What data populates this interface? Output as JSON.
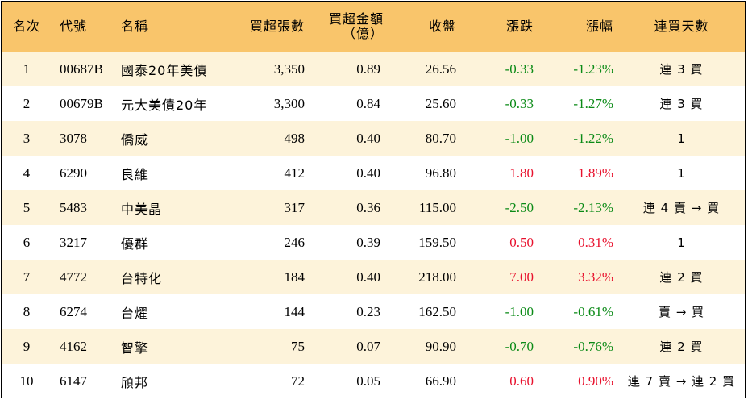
{
  "header": {
    "rank": "名次",
    "code": "代號",
    "name": "名稱",
    "volume": "買超張數",
    "amount_line1": "買超金額",
    "amount_line2": "（億）",
    "close": "收盤",
    "change": "漲跌",
    "pct": "漲幅",
    "streak": "連買天數"
  },
  "colors": {
    "header_bg": "#f9c56b",
    "stripe_bg": "#fdf3da",
    "up": "#e8112d",
    "down": "#0a8a16"
  },
  "rows": [
    {
      "rank": "1",
      "code": "00687B",
      "name": "國泰20年美債",
      "volume": "3,350",
      "amount": "0.89",
      "close": "26.56",
      "change": "-0.33",
      "pct": "-1.23%",
      "dir": "down",
      "streak": "連 3 買"
    },
    {
      "rank": "2",
      "code": "00679B",
      "name": "元大美債20年",
      "volume": "3,300",
      "amount": "0.84",
      "close": "25.60",
      "change": "-0.33",
      "pct": "-1.27%",
      "dir": "down",
      "streak": "連 3 買"
    },
    {
      "rank": "3",
      "code": "3078",
      "name": "僑威",
      "volume": "498",
      "amount": "0.40",
      "close": "80.70",
      "change": "-1.00",
      "pct": "-1.22%",
      "dir": "down",
      "streak": "1"
    },
    {
      "rank": "4",
      "code": "6290",
      "name": "良維",
      "volume": "412",
      "amount": "0.40",
      "close": "96.80",
      "change": "1.80",
      "pct": "1.89%",
      "dir": "up",
      "streak": "1"
    },
    {
      "rank": "5",
      "code": "5483",
      "name": "中美晶",
      "volume": "317",
      "amount": "0.36",
      "close": "115.00",
      "change": "-2.50",
      "pct": "-2.13%",
      "dir": "down",
      "streak": "連 4 賣 → 買"
    },
    {
      "rank": "6",
      "code": "3217",
      "name": "優群",
      "volume": "246",
      "amount": "0.39",
      "close": "159.50",
      "change": "0.50",
      "pct": "0.31%",
      "dir": "up",
      "streak": "1"
    },
    {
      "rank": "7",
      "code": "4772",
      "name": "台特化",
      "volume": "184",
      "amount": "0.40",
      "close": "218.00",
      "change": "7.00",
      "pct": "3.32%",
      "dir": "up",
      "streak": "連 2 買"
    },
    {
      "rank": "8",
      "code": "6274",
      "name": "台燿",
      "volume": "144",
      "amount": "0.23",
      "close": "162.50",
      "change": "-1.00",
      "pct": "-0.61%",
      "dir": "down",
      "streak": "賣 → 買"
    },
    {
      "rank": "9",
      "code": "4162",
      "name": "智擎",
      "volume": "75",
      "amount": "0.07",
      "close": "90.90",
      "change": "-0.70",
      "pct": "-0.76%",
      "dir": "down",
      "streak": "連 2 買"
    },
    {
      "rank": "10",
      "code": "6147",
      "name": "頎邦",
      "volume": "72",
      "amount": "0.05",
      "close": "66.90",
      "change": "0.60",
      "pct": "0.90%",
      "dir": "up",
      "streak": "連 7 賣 → 連 2 買"
    }
  ]
}
